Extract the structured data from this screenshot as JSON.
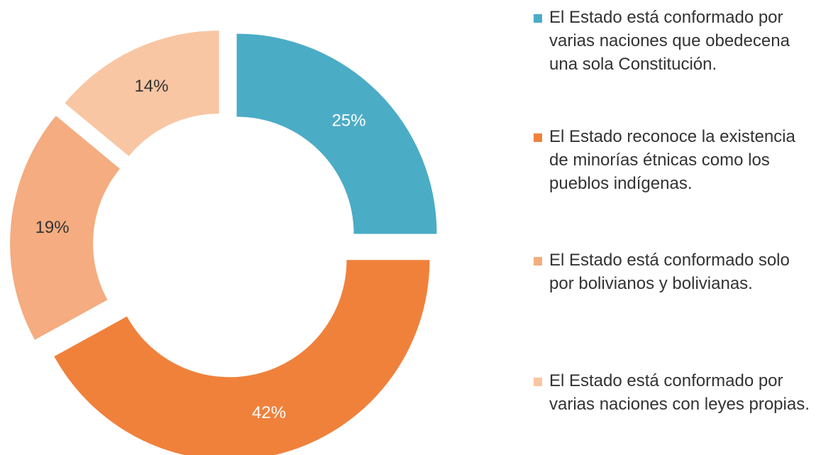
{
  "chart_data": {
    "type": "donut",
    "categories": [
      "El Estado está conformado por varias naciones que obedecena una sola Constitución.",
      "El Estado reconoce la existencia de minorías étnicas como los pueblos indígenas.",
      "El Estado está conformado solo por bolivianos y bolivianas.",
      "El Estado está conformado por varias naciones con leyes propias."
    ],
    "values": [
      25,
      42,
      19,
      14
    ],
    "value_labels": [
      "25%",
      "42%",
      "19%",
      "14%"
    ],
    "colors": [
      "#4bacc6",
      "#f0813b",
      "#f4ac80",
      "#f8c6a3"
    ],
    "label_colors": [
      "#ffffff",
      "#ffffff",
      "#333333",
      "#333333"
    ],
    "legend": "right"
  }
}
